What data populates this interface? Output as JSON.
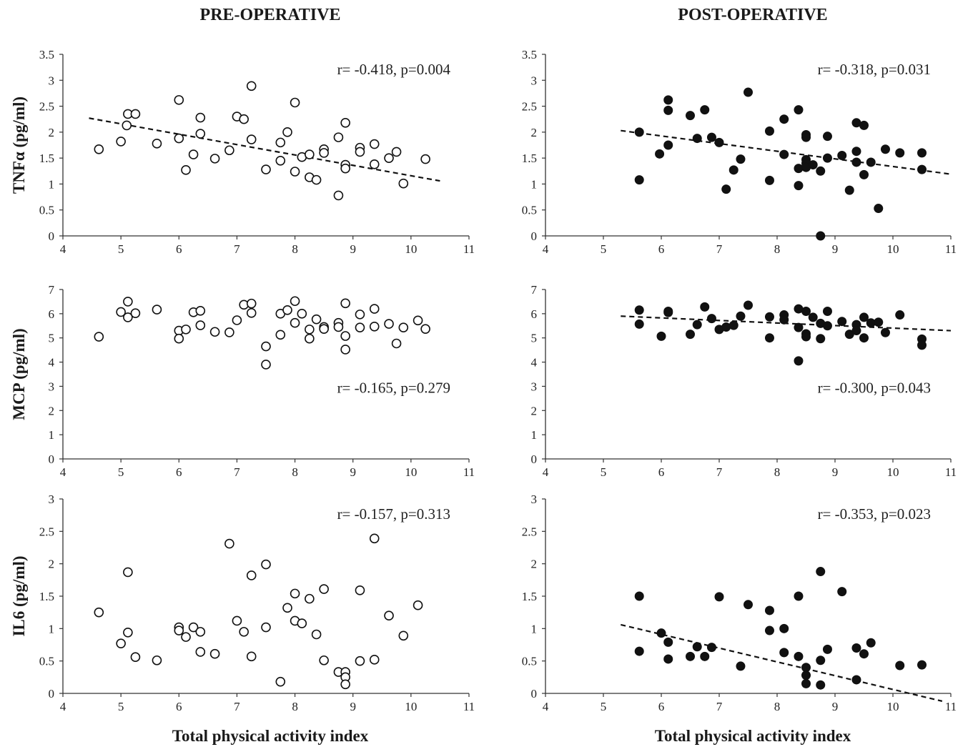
{
  "headers": {
    "left": "PRE-OPERATIVE",
    "right": "POST-OPERATIVE"
  },
  "xlabel": "Total physical activity index",
  "chart_data": [
    {
      "type": "scatter",
      "row": 0,
      "col": 0,
      "marker": "open",
      "ylabel": "TNFα (pg/ml)",
      "xlim": [
        4,
        11
      ],
      "ylim": [
        0,
        3.5
      ],
      "xticks": [
        "4",
        "5",
        "6",
        "7",
        "8",
        "9",
        "10",
        "11"
      ],
      "yticks": [
        "0",
        "0.5",
        "1",
        "1.5",
        "2",
        "2.5",
        "3",
        "3.5"
      ],
      "annotation": "r= -0.418, p=0.004",
      "trendline": {
        "x": [
          4.45,
          10.5
        ],
        "y": [
          2.27,
          1.06
        ]
      },
      "points": [
        [
          4.62,
          1.67
        ],
        [
          5.0,
          1.82
        ],
        [
          5.1,
          2.13
        ],
        [
          5.12,
          2.35
        ],
        [
          5.25,
          2.35
        ],
        [
          5.62,
          1.78
        ],
        [
          6.0,
          2.62
        ],
        [
          6.0,
          1.88
        ],
        [
          6.12,
          1.27
        ],
        [
          6.25,
          1.57
        ],
        [
          6.37,
          2.28
        ],
        [
          6.37,
          1.97
        ],
        [
          6.62,
          1.49
        ],
        [
          6.87,
          1.65
        ],
        [
          7.0,
          2.3
        ],
        [
          7.12,
          2.25
        ],
        [
          7.25,
          2.89
        ],
        [
          7.25,
          1.86
        ],
        [
          7.5,
          1.28
        ],
        [
          7.75,
          1.8
        ],
        [
          7.75,
          1.45
        ],
        [
          7.87,
          2.0
        ],
        [
          8.0,
          2.57
        ],
        [
          8.0,
          1.24
        ],
        [
          8.12,
          1.52
        ],
        [
          8.25,
          1.57
        ],
        [
          8.25,
          1.13
        ],
        [
          8.37,
          1.08
        ],
        [
          8.5,
          1.67
        ],
        [
          8.5,
          1.6
        ],
        [
          8.75,
          1.9
        ],
        [
          8.75,
          0.78
        ],
        [
          8.87,
          2.18
        ],
        [
          8.87,
          1.37
        ],
        [
          8.87,
          1.3
        ],
        [
          9.12,
          1.7
        ],
        [
          9.12,
          1.62
        ],
        [
          9.37,
          1.77
        ],
        [
          9.37,
          1.38
        ],
        [
          9.62,
          1.5
        ],
        [
          9.75,
          1.62
        ],
        [
          9.87,
          1.01
        ],
        [
          10.25,
          1.48
        ]
      ]
    },
    {
      "type": "scatter",
      "row": 0,
      "col": 1,
      "marker": "filled",
      "ylabel": "",
      "xlim": [
        4,
        11
      ],
      "ylim": [
        0,
        3.5
      ],
      "xticks": [
        "4",
        "5",
        "6",
        "7",
        "8",
        "9",
        "10",
        "11"
      ],
      "yticks": [
        "0",
        "0.5",
        "1",
        "1.5",
        "2",
        "2.5",
        "3",
        "3.5"
      ],
      "annotation": "r= -0.318, p=0.031",
      "trendline": {
        "x": [
          5.3,
          11.0
        ],
        "y": [
          2.03,
          1.19
        ]
      },
      "points": [
        [
          5.62,
          2.0
        ],
        [
          5.62,
          1.08
        ],
        [
          5.97,
          1.58
        ],
        [
          6.12,
          2.62
        ],
        [
          6.12,
          2.42
        ],
        [
          6.12,
          1.75
        ],
        [
          6.5,
          2.32
        ],
        [
          6.62,
          1.88
        ],
        [
          6.75,
          2.43
        ],
        [
          6.87,
          1.9
        ],
        [
          7.0,
          1.8
        ],
        [
          7.12,
          0.9
        ],
        [
          7.25,
          1.27
        ],
        [
          7.37,
          1.48
        ],
        [
          7.5,
          2.77
        ],
        [
          7.87,
          2.02
        ],
        [
          7.87,
          1.07
        ],
        [
          8.12,
          2.25
        ],
        [
          8.12,
          1.57
        ],
        [
          8.37,
          2.43
        ],
        [
          8.37,
          1.3
        ],
        [
          8.37,
          0.97
        ],
        [
          8.5,
          1.95
        ],
        [
          8.5,
          1.9
        ],
        [
          8.5,
          1.47
        ],
        [
          8.5,
          1.4
        ],
        [
          8.5,
          1.32
        ],
        [
          8.62,
          1.37
        ],
        [
          8.75,
          1.25
        ],
        [
          8.75,
          0.0
        ],
        [
          8.87,
          1.92
        ],
        [
          8.87,
          1.5
        ],
        [
          9.12,
          1.55
        ],
        [
          9.25,
          0.88
        ],
        [
          9.37,
          2.18
        ],
        [
          9.37,
          1.63
        ],
        [
          9.37,
          1.42
        ],
        [
          9.5,
          2.13
        ],
        [
          9.5,
          1.18
        ],
        [
          9.62,
          1.42
        ],
        [
          9.75,
          0.53
        ],
        [
          9.87,
          1.67
        ],
        [
          10.12,
          1.6
        ],
        [
          10.5,
          1.6
        ],
        [
          10.5,
          1.28
        ]
      ]
    },
    {
      "type": "scatter",
      "row": 1,
      "col": 0,
      "marker": "open",
      "ylabel": "MCP (pg/ml)",
      "xlim": [
        4,
        11
      ],
      "ylim": [
        0,
        7
      ],
      "xticks": [
        "4",
        "5",
        "6",
        "7",
        "8",
        "9",
        "10",
        "11"
      ],
      "yticks": [
        "0",
        "1",
        "2",
        "3",
        "4",
        "5",
        "6",
        "7"
      ],
      "annotation": "r= -0.165, p=0.279",
      "trendline": null,
      "points": [
        [
          4.62,
          5.05
        ],
        [
          5.0,
          6.07
        ],
        [
          5.12,
          6.5
        ],
        [
          5.12,
          5.85
        ],
        [
          5.25,
          6.02
        ],
        [
          5.62,
          6.17
        ],
        [
          6.0,
          5.3
        ],
        [
          6.0,
          4.97
        ],
        [
          6.12,
          5.35
        ],
        [
          6.25,
          6.06
        ],
        [
          6.37,
          6.12
        ],
        [
          6.37,
          5.52
        ],
        [
          6.62,
          5.25
        ],
        [
          6.87,
          5.23
        ],
        [
          7.0,
          5.73
        ],
        [
          7.12,
          6.37
        ],
        [
          7.25,
          6.42
        ],
        [
          7.25,
          6.03
        ],
        [
          7.5,
          4.65
        ],
        [
          7.5,
          3.9
        ],
        [
          7.75,
          6.0
        ],
        [
          7.75,
          5.13
        ],
        [
          7.87,
          6.15
        ],
        [
          8.0,
          6.52
        ],
        [
          8.0,
          5.62
        ],
        [
          8.12,
          6.0
        ],
        [
          8.25,
          5.35
        ],
        [
          8.25,
          4.97
        ],
        [
          8.37,
          5.77
        ],
        [
          8.5,
          5.45
        ],
        [
          8.5,
          5.37
        ],
        [
          8.75,
          5.62
        ],
        [
          8.75,
          5.45
        ],
        [
          8.87,
          6.43
        ],
        [
          8.87,
          5.08
        ],
        [
          8.87,
          4.52
        ],
        [
          9.12,
          5.97
        ],
        [
          9.12,
          5.43
        ],
        [
          9.37,
          6.2
        ],
        [
          9.37,
          5.47
        ],
        [
          9.62,
          5.58
        ],
        [
          9.75,
          4.77
        ],
        [
          9.87,
          5.43
        ],
        [
          10.12,
          5.72
        ],
        [
          10.25,
          5.37
        ]
      ]
    },
    {
      "type": "scatter",
      "row": 1,
      "col": 1,
      "marker": "filled",
      "ylabel": "",
      "xlim": [
        4,
        11
      ],
      "ylim": [
        0,
        7
      ],
      "xticks": [
        "4",
        "5",
        "6",
        "7",
        "8",
        "9",
        "10",
        "11"
      ],
      "yticks": [
        "0",
        "1",
        "2",
        "3",
        "4",
        "5",
        "6",
        "7"
      ],
      "annotation": "r= -0.300, p=0.043",
      "trendline": {
        "x": [
          5.3,
          11.0
        ],
        "y": [
          5.9,
          5.3
        ]
      },
      "points": [
        [
          5.62,
          6.15
        ],
        [
          5.62,
          5.57
        ],
        [
          6.0,
          5.07
        ],
        [
          6.12,
          6.1
        ],
        [
          6.12,
          6.05
        ],
        [
          6.5,
          5.15
        ],
        [
          6.62,
          5.55
        ],
        [
          6.75,
          6.28
        ],
        [
          6.87,
          5.8
        ],
        [
          7.0,
          5.35
        ],
        [
          7.12,
          5.45
        ],
        [
          7.25,
          5.52
        ],
        [
          7.37,
          5.9
        ],
        [
          7.5,
          6.35
        ],
        [
          7.87,
          5.87
        ],
        [
          7.87,
          5.0
        ],
        [
          8.12,
          5.95
        ],
        [
          8.12,
          5.75
        ],
        [
          8.37,
          6.2
        ],
        [
          8.37,
          5.43
        ],
        [
          8.37,
          4.05
        ],
        [
          8.5,
          6.1
        ],
        [
          8.5,
          5.17
        ],
        [
          8.5,
          5.05
        ],
        [
          8.62,
          5.85
        ],
        [
          8.75,
          5.6
        ],
        [
          8.75,
          4.97
        ],
        [
          8.87,
          6.1
        ],
        [
          8.87,
          5.5
        ],
        [
          9.12,
          5.68
        ],
        [
          9.25,
          5.15
        ],
        [
          9.37,
          5.55
        ],
        [
          9.37,
          5.3
        ],
        [
          9.5,
          5.85
        ],
        [
          9.5,
          5.0
        ],
        [
          9.62,
          5.62
        ],
        [
          9.75,
          5.65
        ],
        [
          9.87,
          5.22
        ],
        [
          10.12,
          5.95
        ],
        [
          10.5,
          4.95
        ],
        [
          10.5,
          4.7
        ]
      ]
    },
    {
      "type": "scatter",
      "row": 2,
      "col": 0,
      "marker": "open",
      "ylabel": "IL6 (pg/ml)",
      "xlim": [
        4,
        11
      ],
      "ylim": [
        0,
        3
      ],
      "xticks": [
        "4",
        "5",
        "6",
        "7",
        "8",
        "9",
        "10",
        "11"
      ],
      "yticks": [
        "0",
        "0.5",
        "1",
        "1.5",
        "2",
        "2.5",
        "3"
      ],
      "annotation": "r= -0.157, p=0.313",
      "trendline": null,
      "points": [
        [
          4.62,
          1.25
        ],
        [
          5.0,
          0.77
        ],
        [
          5.12,
          1.87
        ],
        [
          5.12,
          0.94
        ],
        [
          5.25,
          0.56
        ],
        [
          5.62,
          0.51
        ],
        [
          6.0,
          1.02
        ],
        [
          6.0,
          0.97
        ],
        [
          6.12,
          0.87
        ],
        [
          6.25,
          1.02
        ],
        [
          6.37,
          0.95
        ],
        [
          6.37,
          0.64
        ],
        [
          6.62,
          0.61
        ],
        [
          6.87,
          2.31
        ],
        [
          7.0,
          1.12
        ],
        [
          7.12,
          0.95
        ],
        [
          7.25,
          1.82
        ],
        [
          7.25,
          0.57
        ],
        [
          7.5,
          1.99
        ],
        [
          7.5,
          1.02
        ],
        [
          7.75,
          0.18
        ],
        [
          7.87,
          1.32
        ],
        [
          8.0,
          1.54
        ],
        [
          8.0,
          1.12
        ],
        [
          8.12,
          1.08
        ],
        [
          8.25,
          1.46
        ],
        [
          8.37,
          0.91
        ],
        [
          8.5,
          1.61
        ],
        [
          8.5,
          0.51
        ],
        [
          8.75,
          0.33
        ],
        [
          8.87,
          0.33
        ],
        [
          8.87,
          0.25
        ],
        [
          8.87,
          0.14
        ],
        [
          9.12,
          1.59
        ],
        [
          9.12,
          0.5
        ],
        [
          9.37,
          2.39
        ],
        [
          9.37,
          0.52
        ],
        [
          9.62,
          1.2
        ],
        [
          9.87,
          0.89
        ],
        [
          10.12,
          1.36
        ]
      ]
    },
    {
      "type": "scatter",
      "row": 2,
      "col": 1,
      "marker": "filled",
      "ylabel": "",
      "xlim": [
        4,
        11
      ],
      "ylim": [
        0,
        3
      ],
      "xticks": [
        "4",
        "5",
        "6",
        "7",
        "8",
        "9",
        "10",
        "11"
      ],
      "yticks": [
        "0",
        "0.5",
        "1",
        "1.5",
        "2",
        "2.5",
        "3"
      ],
      "annotation": "r= -0.353, p=0.023",
      "trendline": {
        "x": [
          5.3,
          10.85
        ],
        "y": [
          1.06,
          -0.12
        ]
      },
      "points": [
        [
          5.62,
          1.5
        ],
        [
          5.62,
          0.65
        ],
        [
          6.0,
          0.93
        ],
        [
          6.12,
          0.79
        ],
        [
          6.12,
          0.53
        ],
        [
          6.5,
          0.57
        ],
        [
          6.62,
          0.72
        ],
        [
          6.75,
          0.57
        ],
        [
          6.87,
          0.71
        ],
        [
          7.0,
          1.49
        ],
        [
          7.37,
          0.42
        ],
        [
          7.5,
          1.37
        ],
        [
          7.87,
          1.28
        ],
        [
          7.87,
          0.97
        ],
        [
          8.12,
          1.0
        ],
        [
          8.12,
          0.63
        ],
        [
          8.37,
          1.5
        ],
        [
          8.37,
          0.57
        ],
        [
          8.5,
          0.4
        ],
        [
          8.5,
          0.28
        ],
        [
          8.5,
          0.15
        ],
        [
          8.75,
          1.88
        ],
        [
          8.75,
          0.51
        ],
        [
          8.75,
          0.13
        ],
        [
          8.87,
          0.68
        ],
        [
          9.12,
          1.57
        ],
        [
          9.37,
          0.7
        ],
        [
          9.37,
          0.21
        ],
        [
          9.5,
          0.61
        ],
        [
          9.62,
          0.78
        ],
        [
          10.12,
          0.43
        ],
        [
          10.5,
          0.44
        ]
      ]
    }
  ]
}
